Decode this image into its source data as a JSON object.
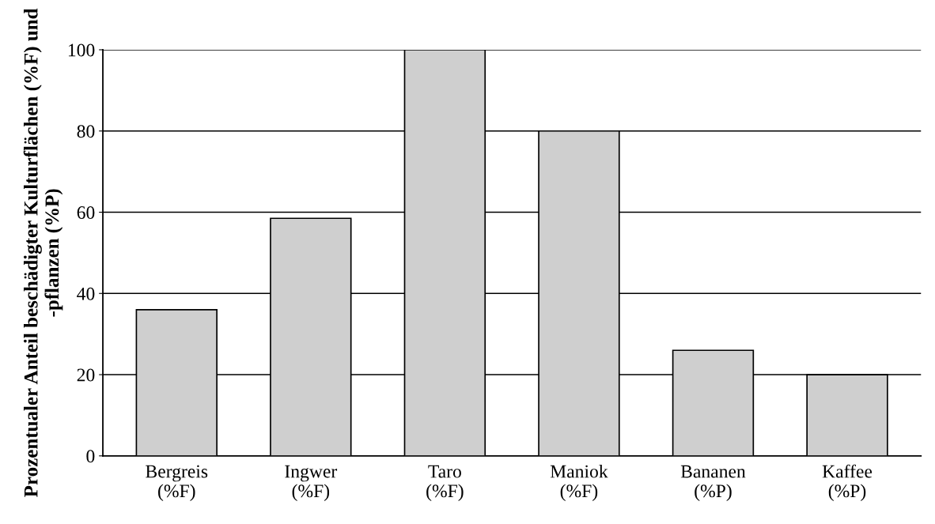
{
  "chart_data": {
    "type": "bar",
    "ylabel": "Prozentualer Anteil beschädigter Kulturflächen (%F) und\n-pflanzen (%P)",
    "categories": [
      "Bergreis\n(%F)",
      "Ingwer\n(%F)",
      "Taro\n(%F)",
      "Maniok\n(%F)",
      "Bananen\n(%P)",
      "Kaffee\n(%P)"
    ],
    "values": [
      36,
      58.5,
      100,
      80,
      26,
      20
    ],
    "color": "#cfcfcf",
    "ylim": [
      0,
      100
    ],
    "yticks": [
      0,
      20,
      40,
      60,
      80,
      100
    ],
    "grid": "y"
  }
}
